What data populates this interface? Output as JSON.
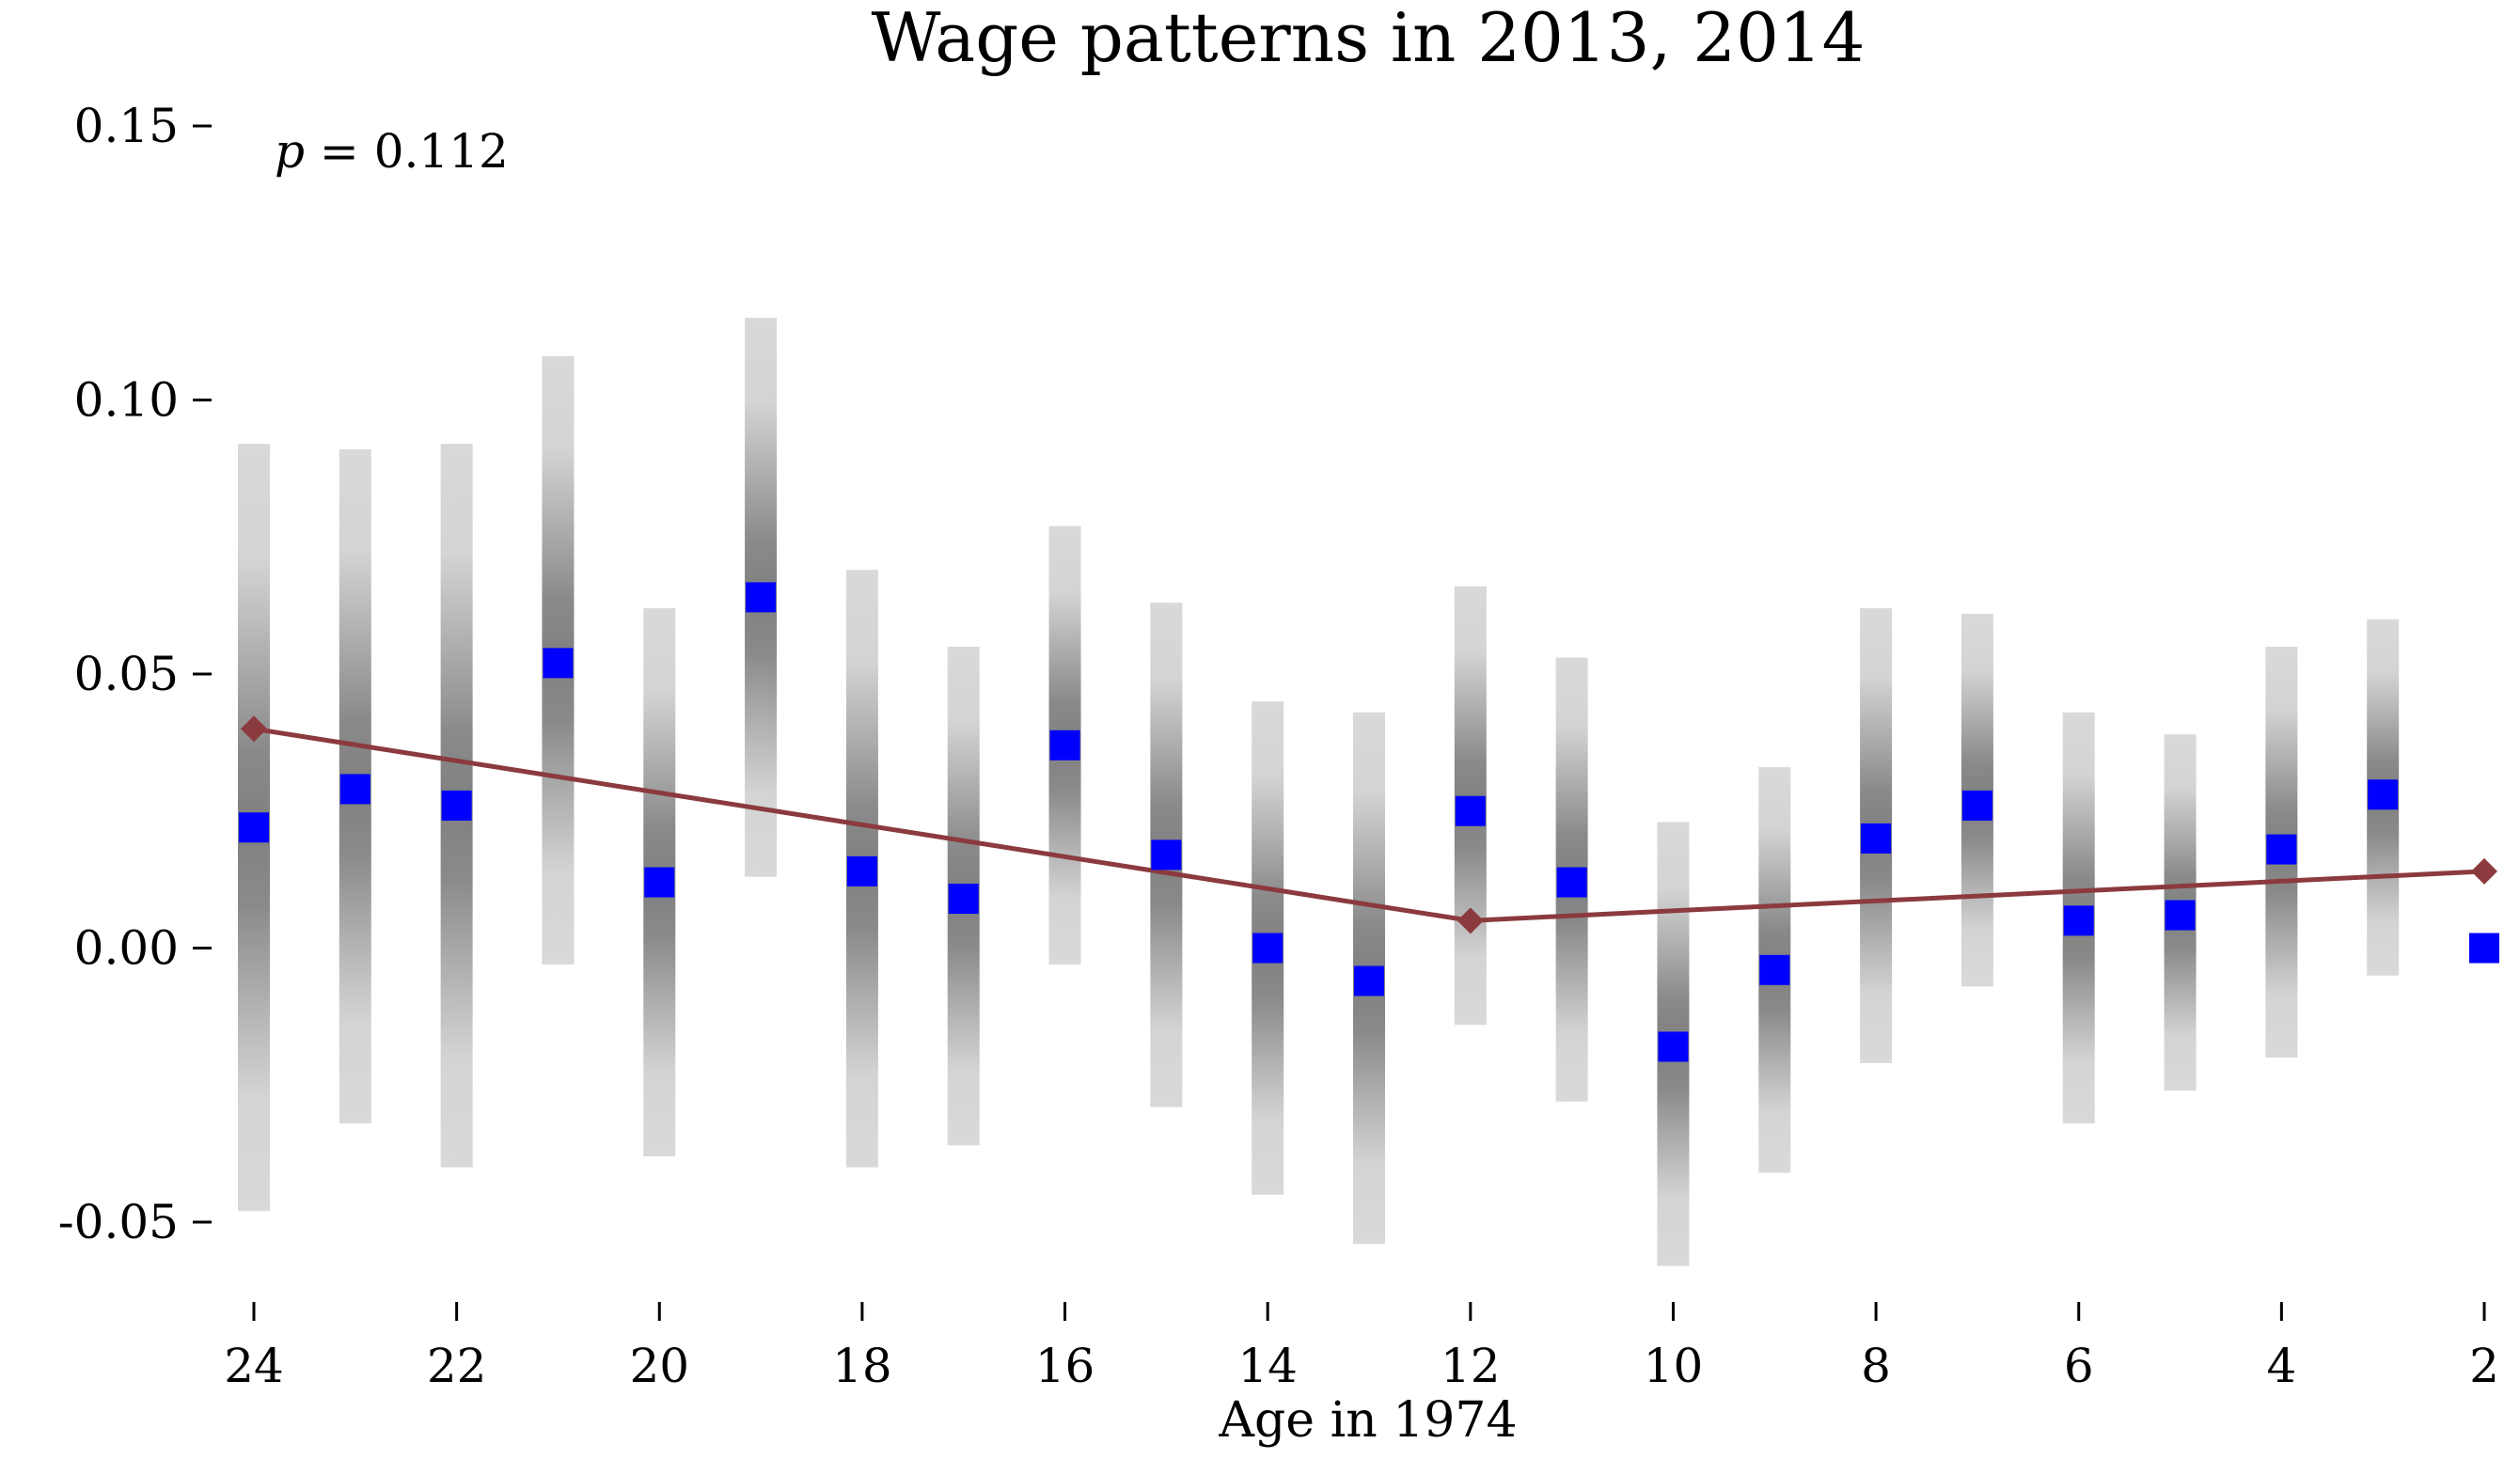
{
  "chart_data": {
    "type": "scatter",
    "title": "Wage patterns in 2013, 2014",
    "xlabel": "Age in 1974",
    "ylabel": "",
    "x_reversed": true,
    "xlim": [
      24,
      2
    ],
    "ylim": [
      -0.065,
      0.155
    ],
    "x_ticks": [
      24,
      22,
      20,
      18,
      16,
      14,
      12,
      10,
      8,
      6,
      4,
      2
    ],
    "x_tick_labels": [
      "24",
      "22",
      "20",
      "18",
      "16",
      "14",
      "12",
      "10",
      "8",
      "6",
      "4",
      "2"
    ],
    "y_ticks": [
      0.15,
      0.1,
      0.05,
      0.0,
      -0.05
    ],
    "y_tick_labels": [
      "0.15",
      "0.10",
      "0.05",
      "0.00",
      "-0.05"
    ],
    "grid": false,
    "annotation": {
      "symbol": "p",
      "text": " = 0.112"
    },
    "series": [
      {
        "kind": "confidence_band",
        "color": "#808080",
        "points": [
          {
            "x": 24,
            "low": -0.048,
            "high": 0.092
          },
          {
            "x": 23,
            "low": -0.032,
            "high": 0.091
          },
          {
            "x": 22,
            "low": -0.04,
            "high": 0.092
          },
          {
            "x": 21,
            "low": -0.003,
            "high": 0.108
          },
          {
            "x": 20,
            "low": -0.038,
            "high": 0.062
          },
          {
            "x": 19,
            "low": 0.013,
            "high": 0.115
          },
          {
            "x": 18,
            "low": -0.04,
            "high": 0.069
          },
          {
            "x": 17,
            "low": -0.036,
            "high": 0.055
          },
          {
            "x": 16,
            "low": -0.003,
            "high": 0.077
          },
          {
            "x": 15,
            "low": -0.029,
            "high": 0.063
          },
          {
            "x": 14,
            "low": -0.045,
            "high": 0.045
          },
          {
            "x": 13,
            "low": -0.054,
            "high": 0.043
          },
          {
            "x": 12,
            "low": -0.014,
            "high": 0.066
          },
          {
            "x": 11,
            "low": -0.028,
            "high": 0.053
          },
          {
            "x": 10,
            "low": -0.058,
            "high": 0.023
          },
          {
            "x": 9,
            "low": -0.041,
            "high": 0.033
          },
          {
            "x": 8,
            "low": -0.021,
            "high": 0.062
          },
          {
            "x": 7,
            "low": -0.007,
            "high": 0.061
          },
          {
            "x": 6,
            "low": -0.032,
            "high": 0.043
          },
          {
            "x": 5,
            "low": -0.026,
            "high": 0.039
          },
          {
            "x": 4,
            "low": -0.02,
            "high": 0.055
          },
          {
            "x": 3,
            "low": -0.005,
            "high": 0.06
          }
        ]
      },
      {
        "kind": "point_estimate",
        "color": "#0000ff",
        "marker": "square",
        "x": [
          24,
          23,
          22,
          21,
          20,
          19,
          18,
          17,
          16,
          15,
          14,
          13,
          12,
          11,
          10,
          9,
          8,
          7,
          6,
          5,
          4,
          3,
          2
        ],
        "y": [
          0.022,
          0.029,
          0.026,
          0.052,
          0.012,
          0.064,
          0.014,
          0.009,
          0.037,
          0.017,
          0.0,
          -0.006,
          0.025,
          0.012,
          -0.018,
          -0.004,
          0.02,
          0.026,
          0.005,
          0.006,
          0.018,
          0.028,
          0.0
        ]
      },
      {
        "kind": "fitted_line",
        "color": "#8b3a3e",
        "marker": "diamond",
        "x": [
          24,
          12,
          2
        ],
        "y": [
          0.04,
          0.005,
          0.014
        ]
      }
    ]
  }
}
